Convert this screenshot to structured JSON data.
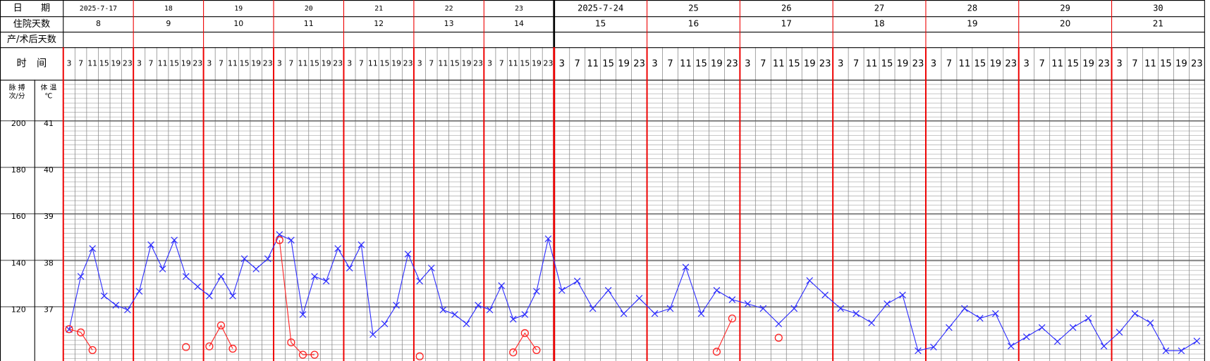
{
  "chart_data": {
    "type": "line",
    "row_labels": [
      "日　　期",
      "住院天数",
      "产/术后天数",
      "时　间"
    ],
    "dates": [
      "2025-7-17",
      "18",
      "19",
      "20",
      "21",
      "22",
      "23",
      "2025-7-24",
      "25",
      "26",
      "27",
      "28",
      "29",
      "30"
    ],
    "hospital_days": [
      8,
      9,
      10,
      11,
      12,
      13,
      14,
      15,
      16,
      17,
      18,
      19,
      20,
      21
    ],
    "categories": [
      3,
      7,
      11,
      15,
      19,
      23,
      3,
      7,
      11,
      15,
      19,
      23,
      3,
      7,
      11,
      15,
      19,
      23,
      3,
      7,
      11,
      15,
      19,
      23,
      3,
      7,
      11,
      15,
      19,
      23,
      3,
      7,
      11,
      15,
      19,
      23,
      3,
      7,
      11,
      15,
      19,
      23,
      3,
      7,
      11,
      15,
      19,
      23,
      3,
      7,
      11,
      15,
      19,
      23,
      3,
      7,
      11,
      15,
      19,
      23,
      3,
      7,
      11,
      15,
      19,
      23,
      3,
      7,
      11,
      15,
      19,
      23,
      3,
      7,
      11,
      15,
      19,
      23,
      3,
      7,
      11,
      15,
      19,
      23
    ],
    "ylabel": [
      "脉 搏",
      "次/分"
    ],
    "y2label": [
      "体 温",
      "℃"
    ],
    "ylim": [
      98,
      219
    ],
    "yticks": [
      200,
      180,
      160,
      140,
      120
    ],
    "y2lim": [
      35.9,
      41.95
    ],
    "y2ticks": [
      41,
      40,
      39,
      38,
      37
    ],
    "grid": true,
    "series": [
      {
        "color": "#2b2bff",
        "marker": "x",
        "axis": "y2",
        "values": [
          36.58,
          37.72,
          38.32,
          37.3,
          37.1,
          37.0,
          37.4,
          38.4,
          37.88,
          38.5,
          37.72,
          37.5,
          37.3,
          37.72,
          37.3,
          38.1,
          37.88,
          38.1,
          38.62,
          38.5,
          36.9,
          37.72,
          37.62,
          38.32,
          37.9,
          38.4,
          36.47,
          36.7,
          37.1,
          38.2,
          37.62,
          37.9,
          37.0,
          36.9,
          36.7,
          37.1,
          37.0,
          37.52,
          36.8,
          36.9,
          37.4,
          38.53,
          37.42,
          37.62,
          37.03,
          37.42,
          36.92,
          37.25,
          36.92,
          37.03,
          37.92,
          36.92,
          37.42,
          37.22,
          37.13,
          37.03,
          36.7,
          37.03,
          37.63,
          37.32,
          37.03,
          36.92,
          36.72,
          37.13,
          37.32,
          36.12,
          36.2,
          36.62,
          37.03,
          36.82,
          36.92,
          36.22,
          36.42,
          36.62,
          36.32,
          36.62,
          36.82,
          36.22,
          36.52,
          36.92,
          36.72,
          36.12,
          36.12,
          36.33
        ]
      },
      {
        "color": "#ff2020",
        "marker": "o",
        "values": [
          111.7,
          110.3,
          102.7,
          null,
          null,
          null,
          null,
          null,
          null,
          null,
          104,
          null,
          104.3,
          113.3,
          103.3,
          null,
          null,
          null,
          150,
          106,
          100.7,
          100.7,
          null,
          null,
          null,
          null,
          null,
          null,
          null,
          null,
          100,
          null,
          null,
          null,
          null,
          null,
          null,
          null,
          101.7,
          110,
          102.7,
          null,
          null,
          null,
          null,
          null,
          null,
          null,
          null,
          null,
          null,
          null,
          102,
          116.3,
          null,
          null,
          108,
          null,
          null,
          null,
          null,
          null,
          null,
          null,
          null,
          null,
          null,
          null,
          null,
          null,
          null,
          null,
          null,
          null,
          null,
          null,
          null,
          null,
          null,
          null,
          null,
          null,
          null,
          null
        ]
      }
    ]
  }
}
